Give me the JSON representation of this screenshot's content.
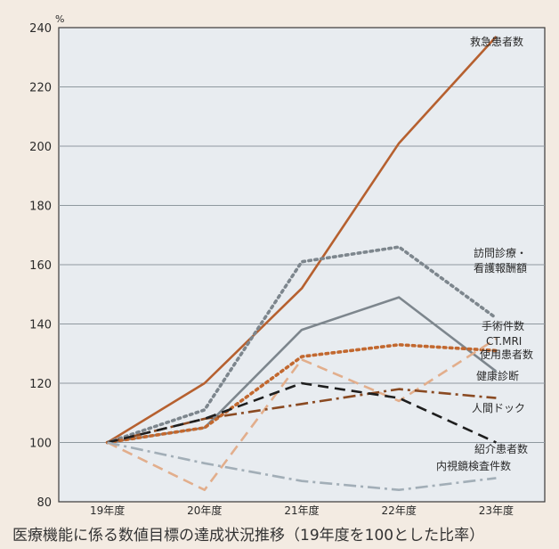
{
  "chart_data": {
    "type": "line",
    "caption": "医療機能に係る数値目標の達成状況推移（19年度を100とした比率）",
    "y_unit": "%",
    "categories": [
      "19年度",
      "20年度",
      "21年度",
      "22年度",
      "23年度"
    ],
    "ylim": [
      80,
      240
    ],
    "yticks": [
      80,
      100,
      120,
      140,
      160,
      180,
      200,
      220,
      240
    ],
    "grid": "horizontal",
    "plot_background": "#e8ecf0",
    "series": [
      {
        "name": "救急患者数",
        "label_lines": [
          "救急患者数"
        ],
        "values": [
          100,
          120,
          152,
          201,
          237
        ],
        "color": "#b6602f",
        "style": "solid"
      },
      {
        "name": "訪問診療・看護報酬額",
        "label_lines": [
          "訪問診療・",
          "看護報酬額"
        ],
        "values": [
          100,
          111,
          161,
          166,
          142
        ],
        "color": "#7d868d",
        "style": "dotted"
      },
      {
        "name": "手術件数",
        "label_lines": [
          "手術件数"
        ],
        "values": [
          100,
          105,
          138,
          149,
          124
        ],
        "color": "#7d868d",
        "style": "solid"
      },
      {
        "name": "CT.MRI使用患者数",
        "label_lines": [
          "CT.MRI",
          "使用患者数"
        ],
        "values": [
          100,
          105,
          129,
          133,
          131
        ],
        "color": "#c2682f",
        "style": "dotted"
      },
      {
        "name": "健康診断",
        "label_lines": [
          "健康診断"
        ],
        "values": [
          100,
          84,
          128,
          114,
          135
        ],
        "color": "#e2ae8c",
        "style": "dashed"
      },
      {
        "name": "人間ドック",
        "label_lines": [
          "人間ドック"
        ],
        "values": [
          100,
          108,
          113,
          118,
          115
        ],
        "color": "#8a4a22",
        "style": "dashdot"
      },
      {
        "name": "紹介患者数",
        "label_lines": [
          "紹介患者数"
        ],
        "values": [
          100,
          108,
          120,
          115,
          100
        ],
        "color": "#1e1e1e",
        "style": "dashed"
      },
      {
        "name": "内視鏡検査件数",
        "label_lines": [
          "内視鏡検査件数"
        ],
        "values": [
          100,
          93,
          87,
          84,
          88
        ],
        "color": "#a2aeb7",
        "style": "dashdot"
      }
    ]
  }
}
